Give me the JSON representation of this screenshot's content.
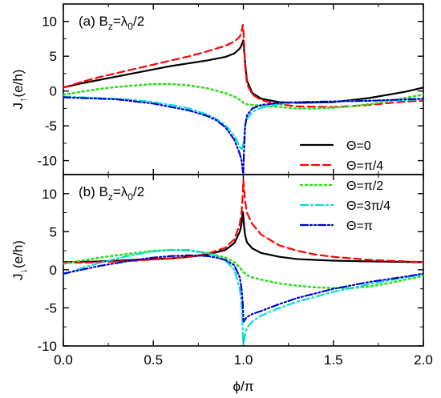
{
  "chart_data": {
    "type": "line",
    "xlabel": "ϕ/π",
    "x_ticks": [
      "0.0",
      "0.5",
      "1.0",
      "1.5",
      "2.0"
    ],
    "xlim": [
      0,
      2
    ],
    "legend": {
      "placement": "right, spanning both panels",
      "entries": [
        {
          "label": "Θ=0",
          "color": "#000000",
          "dash": "solid"
        },
        {
          "label": "Θ=π/4",
          "color": "#ff0000",
          "dash": "dashed"
        },
        {
          "label": "Θ=π/2",
          "color": "#33dd22",
          "dash": "dotted"
        },
        {
          "label": "Θ=3π/4",
          "color": "#00dddd",
          "dash": "dashdot"
        },
        {
          "label": "Θ=π",
          "color": "#0000cc",
          "dash": "dashdotdot"
        }
      ]
    },
    "panels": [
      {
        "label_prefix": "(a) B",
        "label_sub": "z",
        "label_eq": "=λ",
        "label_sub2": "0",
        "label_suffix": "/2",
        "ylabel_main": "J",
        "ylabel_sub": "↑",
        "ylabel_unit": "(e/h)",
        "ylim": [
          -12,
          12.5
        ],
        "y_ticks": [
          10,
          5,
          0,
          -5,
          -10
        ],
        "series": [
          {
            "name": "Θ=0",
            "color": "#000000",
            "dash": "solid",
            "x": [
              0,
              0.1,
              0.2,
              0.3,
              0.4,
              0.5,
              0.6,
              0.7,
              0.8,
              0.9,
              0.95,
              0.98,
              0.99,
              1.0,
              1.01,
              1.02,
              1.05,
              1.1,
              1.2,
              1.3,
              1.5,
              1.7,
              1.9,
              2.0
            ],
            "y": [
              0.5,
              1.1,
              1.6,
              2.1,
              2.6,
              3.1,
              3.6,
              4.0,
              4.4,
              4.9,
              5.4,
              6.1,
              6.6,
              7.3,
              4.0,
              1.5,
              -0.3,
              -1.1,
              -1.6,
              -1.7,
              -1.6,
              -1.0,
              -0.1,
              0.5
            ]
          },
          {
            "name": "Θ=π/4",
            "color": "#ff0000",
            "dash": "dashed",
            "x": [
              0,
              0.1,
              0.2,
              0.3,
              0.4,
              0.5,
              0.6,
              0.7,
              0.8,
              0.9,
              0.95,
              0.98,
              0.99,
              0.997,
              1.0,
              1.01,
              1.02,
              1.05,
              1.1,
              1.2,
              1.3,
              1.5,
              1.7,
              1.9,
              2.0
            ],
            "y": [
              0.5,
              1.3,
              2.0,
              2.6,
              3.2,
              3.8,
              4.4,
              5.0,
              5.7,
              6.5,
              7.1,
              7.8,
              8.5,
              9.5,
              9.0,
              3.5,
              1.0,
              -0.5,
              -1.3,
              -1.9,
              -2.2,
              -2.3,
              -2.0,
              -1.5,
              -1.4
            ]
          },
          {
            "name": "Θ=π/2",
            "color": "#33dd22",
            "dash": "dotted",
            "x": [
              0,
              0.1,
              0.2,
              0.3,
              0.4,
              0.5,
              0.6,
              0.7,
              0.8,
              0.9,
              0.95,
              0.99,
              1.0,
              1.02,
              1.05,
              1.1,
              1.2,
              1.3,
              1.4,
              1.5,
              1.6,
              1.7,
              1.8,
              1.9,
              2.0
            ],
            "y": [
              -0.5,
              -0.1,
              0.3,
              0.6,
              0.8,
              1.0,
              1.0,
              0.8,
              0.4,
              -0.3,
              -0.8,
              -1.4,
              -1.7,
              -1.9,
              -2.0,
              -2.1,
              -2.3,
              -2.5,
              -2.5,
              -2.4,
              -2.2,
              -1.9,
              -1.5,
              -1.0,
              -0.5
            ]
          },
          {
            "name": "Θ=3π/4",
            "color": "#00dddd",
            "dash": "dashdot",
            "x": [
              0,
              0.1,
              0.2,
              0.3,
              0.4,
              0.5,
              0.6,
              0.7,
              0.8,
              0.85,
              0.9,
              0.95,
              0.98,
              0.99,
              1.0,
              1.01,
              1.02,
              1.05,
              1.1,
              1.2,
              1.3,
              1.5,
              1.7,
              1.9,
              2.0
            ],
            "y": [
              -0.8,
              -0.9,
              -1.0,
              -1.1,
              -1.3,
              -1.6,
              -2.0,
              -2.5,
              -3.4,
              -4.0,
              -4.9,
              -6.4,
              -8.0,
              -8.5,
              -7.5,
              -5.0,
              -4.0,
              -3.0,
              -2.4,
              -1.9,
              -1.6,
              -1.5,
              -1.4,
              -1.3,
              -1.2
            ]
          },
          {
            "name": "Θ=π",
            "color": "#0000cc",
            "dash": "dashdotdot",
            "x": [
              0,
              0.1,
              0.2,
              0.3,
              0.4,
              0.5,
              0.6,
              0.7,
              0.8,
              0.85,
              0.9,
              0.95,
              0.98,
              0.99,
              0.997,
              1.0,
              1.003,
              1.01,
              1.02,
              1.05,
              1.1,
              1.2,
              1.3,
              1.5,
              1.7,
              1.9,
              2.0
            ],
            "y": [
              -0.9,
              -1.0,
              -1.1,
              -1.2,
              -1.5,
              -1.8,
              -2.3,
              -2.8,
              -3.6,
              -4.2,
              -5.2,
              -7.0,
              -9.0,
              -10.0,
              -11.5,
              -11.8,
              -9.0,
              -5.0,
              -3.5,
              -2.5,
              -2.0,
              -1.7,
              -1.6,
              -1.5,
              -1.4,
              -1.2,
              -1.1
            ]
          }
        ]
      },
      {
        "label_prefix": "(b) B",
        "label_sub": "z",
        "label_eq": "=λ",
        "label_sub2": "0",
        "label_suffix": "/2",
        "ylabel_main": "J",
        "ylabel_sub": "↓",
        "ylabel_unit": "(e/h)",
        "ylim": [
          -10,
          12.5
        ],
        "y_ticks": [
          10,
          5,
          0,
          -5,
          -10
        ],
        "series": [
          {
            "name": "Θ=0",
            "color": "#000000",
            "dash": "solid",
            "x": [
              0,
              0.2,
              0.4,
              0.6,
              0.7,
              0.8,
              0.9,
              0.95,
              0.98,
              0.99,
              0.997,
              1.0,
              1.005,
              1.01,
              1.02,
              1.05,
              1.1,
              1.2,
              1.3,
              1.5,
              1.7,
              2.0
            ],
            "y": [
              1.0,
              1.1,
              1.3,
              1.5,
              1.7,
              2.0,
              2.6,
              3.5,
              5.0,
              6.0,
              7.6,
              7.0,
              5.5,
              4.5,
              3.6,
              2.8,
              2.2,
              1.7,
              1.4,
              1.2,
              1.1,
              1.0
            ]
          },
          {
            "name": "Θ=π/4",
            "color": "#ff0000",
            "dash": "dashed",
            "x": [
              0,
              0.2,
              0.4,
              0.6,
              0.7,
              0.8,
              0.9,
              0.95,
              0.98,
              0.99,
              0.997,
              1.0,
              1.01,
              1.02,
              1.05,
              1.1,
              1.2,
              1.3,
              1.4,
              1.5,
              1.7,
              2.0
            ],
            "y": [
              0.9,
              1.0,
              1.2,
              1.5,
              1.7,
              2.1,
              2.9,
              4.0,
              6.0,
              7.5,
              10.0,
              11.8,
              9.0,
              7.5,
              6.0,
              4.6,
              3.2,
              2.5,
              2.0,
              1.7,
              1.3,
              1.0
            ]
          },
          {
            "name": "Θ=π/2",
            "color": "#33dd22",
            "dash": "dotted",
            "x": [
              0,
              0.1,
              0.2,
              0.3,
              0.4,
              0.5,
              0.6,
              0.7,
              0.8,
              0.9,
              0.95,
              0.98,
              1.0,
              1.02,
              1.05,
              1.1,
              1.2,
              1.3,
              1.4,
              1.5,
              1.6,
              1.7,
              1.8,
              1.9,
              2.0
            ],
            "y": [
              0.8,
              1.2,
              1.6,
              1.9,
              2.2,
              2.5,
              2.6,
              2.5,
              2.2,
              1.6,
              1.0,
              0.3,
              -0.3,
              -0.7,
              -1.0,
              -1.3,
              -1.8,
              -2.1,
              -2.3,
              -2.4,
              -2.4,
              -2.2,
              -1.8,
              -1.3,
              -0.8
            ]
          },
          {
            "name": "Θ=3π/4",
            "color": "#00dddd",
            "dash": "dashdot",
            "x": [
              0,
              0.1,
              0.2,
              0.3,
              0.4,
              0.5,
              0.6,
              0.7,
              0.8,
              0.85,
              0.9,
              0.95,
              0.98,
              0.99,
              0.997,
              1.0,
              1.003,
              1.01,
              1.02,
              1.05,
              1.1,
              1.2,
              1.3,
              1.5,
              1.7,
              1.9,
              2.0
            ],
            "y": [
              -0.6,
              0.2,
              0.9,
              1.5,
              2.0,
              2.4,
              2.6,
              2.6,
              2.2,
              1.8,
              1.2,
              0.0,
              -2.5,
              -4.5,
              -8.0,
              -9.8,
              -9.5,
              -8.5,
              -7.6,
              -6.8,
              -6.0,
              -5.0,
              -4.2,
              -2.9,
              -1.9,
              -1.0,
              -0.6
            ]
          },
          {
            "name": "Θ=π",
            "color": "#0000cc",
            "dash": "dashdotdot",
            "x": [
              0,
              0.1,
              0.2,
              0.3,
              0.4,
              0.5,
              0.6,
              0.7,
              0.8,
              0.85,
              0.9,
              0.95,
              0.98,
              0.99,
              0.997,
              1.0,
              1.003,
              1.01,
              1.02,
              1.05,
              1.1,
              1.2,
              1.3,
              1.5,
              1.7,
              1.9,
              2.0
            ],
            "y": [
              -0.5,
              0.0,
              0.5,
              0.9,
              1.3,
              1.6,
              1.8,
              1.9,
              1.8,
              1.6,
              1.3,
              0.6,
              -1.0,
              -2.5,
              -4.5,
              -6.5,
              -6.8,
              -6.5,
              -6.2,
              -5.8,
              -5.4,
              -4.5,
              -3.7,
              -2.5,
              -1.6,
              -0.9,
              -0.5
            ]
          }
        ]
      }
    ]
  }
}
